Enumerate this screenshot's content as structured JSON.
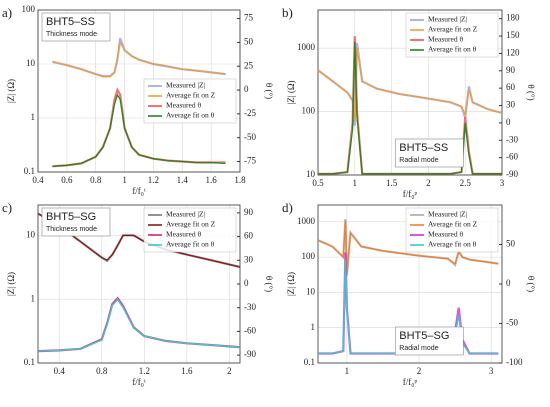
{
  "chart_data": [
    {
      "type": "line",
      "panel_label": "a)",
      "annotation": "BHT5–SS",
      "annotation_sub": "Thickness mode",
      "xlabel": "f/f₀ᵗ",
      "ylabel": "|Z| (Ω)",
      "y2label": "θ (°)",
      "ylog": true,
      "grid": true,
      "legend_loc": "center right",
      "x": [
        0.5,
        0.6,
        0.7,
        0.8,
        0.85,
        0.9,
        0.93,
        0.95,
        0.97,
        1.0,
        1.05,
        1.1,
        1.2,
        1.3,
        1.4,
        1.5,
        1.6,
        1.7
      ],
      "xlim": [
        0.4,
        1.8
      ],
      "xticks": [
        0.4,
        0.6,
        0.8,
        1,
        1.2,
        1.4,
        1.6,
        1.8
      ],
      "ylim": [
        0.1,
        100
      ],
      "yticks": [
        0.1,
        1,
        10,
        100
      ],
      "y2lim": [
        -86,
        84
      ],
      "y2ticks": [
        75,
        50,
        25,
        0,
        -25,
        -50,
        -75
      ],
      "series": [
        {
          "name": "Measured |Z|",
          "color": "#9a9ef0",
          "values": [
            11,
            9.5,
            8,
            6.5,
            6,
            6,
            7,
            12,
            30,
            18,
            14,
            12,
            10,
            9,
            8,
            7.5,
            7,
            6.5
          ]
        },
        {
          "name": "Average fit on Z",
          "color": "#f0a030",
          "values": [
            11,
            9.5,
            8,
            6.5,
            5.8,
            5.8,
            7,
            13,
            25,
            18,
            14,
            12,
            10,
            9,
            8,
            7.5,
            7,
            6.5
          ]
        },
        {
          "name": "Measured θ",
          "color": "#f05050",
          "axis": "y2",
          "values": [
            -80,
            -79,
            -77,
            -70,
            -60,
            -40,
            -10,
            0,
            -5,
            -40,
            -60,
            -68,
            -72,
            -74,
            -75,
            -76,
            -76,
            -76
          ]
        },
        {
          "name": "Average fit on θ",
          "color": "#228822",
          "axis": "y2",
          "values": [
            -80,
            -79,
            -77,
            -70,
            -60,
            -40,
            -15,
            -5,
            -10,
            -40,
            -60,
            -68,
            -72,
            -74,
            -75,
            -76,
            -76,
            -77
          ]
        }
      ]
    },
    {
      "type": "line",
      "panel_label": "b)",
      "annotation": "BHT5–SS",
      "annotation_sub": "Radial mode",
      "xlabel": "f/f₀ᵖ",
      "ylabel": "|Z| (Ω)",
      "y2label": "θ (°)",
      "ylog": true,
      "grid": true,
      "legend_loc": "upper right",
      "x": [
        0.5,
        0.7,
        0.9,
        0.97,
        1.0,
        1.03,
        1.1,
        1.3,
        1.6,
        2.0,
        2.3,
        2.45,
        2.5,
        2.55,
        2.6,
        2.8,
        3.0
      ],
      "xlim": [
        0.5,
        3
      ],
      "xticks": [
        0.5,
        1,
        1.5,
        2,
        2.5,
        3
      ],
      "ylim": [
        10,
        4000
      ],
      "yticks": [
        10,
        100,
        1000
      ],
      "y2lim": [
        -90,
        195
      ],
      "y2ticks": [
        180,
        150,
        120,
        90,
        60,
        30,
        0,
        -30,
        -60,
        -90
      ],
      "series": [
        {
          "name": "Measured |Z|",
          "color": "#9a9ef0",
          "values": [
            450,
            300,
            200,
            150,
            60,
            1200,
            300,
            230,
            190,
            160,
            140,
            120,
            80,
            250,
            140,
            110,
            95
          ]
        },
        {
          "name": "Average fit on Z",
          "color": "#f0a030",
          "values": [
            450,
            300,
            200,
            150,
            70,
            1000,
            300,
            230,
            190,
            160,
            140,
            120,
            90,
            220,
            140,
            110,
            95
          ]
        },
        {
          "name": "Measured θ",
          "color": "#f05050",
          "axis": "y2",
          "values": [
            -88,
            -88,
            -85,
            0,
            150,
            20,
            -88,
            -88,
            -88,
            -88,
            -88,
            -85,
            10,
            -50,
            -88,
            -88,
            -88
          ]
        },
        {
          "name": "Average fit on θ",
          "color": "#228822",
          "axis": "y2",
          "values": [
            -88,
            -88,
            -85,
            -10,
            140,
            10,
            -88,
            -88,
            -88,
            -88,
            -88,
            -85,
            0,
            -55,
            -88,
            -88,
            -88
          ]
        }
      ]
    },
    {
      "type": "line",
      "panel_label": "c)",
      "annotation": "BHT5–SG",
      "annotation_sub": "Thickness mode",
      "xlabel": "f/f₀ᵗ",
      "ylabel": "|Z| (Ω)",
      "y2label": "θ (°)",
      "ylog": true,
      "grid": true,
      "legend_loc": "upper right",
      "x": [
        0.2,
        0.4,
        0.6,
        0.8,
        0.85,
        0.9,
        0.95,
        1.0,
        1.1,
        1.2,
        1.4,
        1.6,
        1.8,
        2.0,
        2.1
      ],
      "xlim": [
        0.2,
        2.1
      ],
      "xticks": [
        0.4,
        0.8,
        1.2,
        1.6,
        2
      ],
      "ylim": [
        0.1,
        30
      ],
      "yticks": [
        0.1,
        1,
        10
      ],
      "y2lim": [
        -100,
        100
      ],
      "y2ticks": [
        90,
        60,
        30,
        0,
        -30,
        -60,
        -90
      ],
      "series": [
        {
          "name": "Measured |Z|",
          "color": "#777777",
          "values": [
            22,
            14,
            8,
            4.5,
            4,
            5,
            7,
            10,
            10,
            8,
            6,
            5,
            4.2,
            3.5,
            3.2
          ]
        },
        {
          "name": "Average fit on Z",
          "color": "#8b1a1a",
          "values": [
            22,
            14,
            8,
            4.5,
            4.1,
            5,
            7,
            10,
            10,
            8,
            6,
            5,
            4.2,
            3.5,
            3.2
          ]
        },
        {
          "name": "Measured θ",
          "color": "#cc2288",
          "axis": "y2",
          "values": [
            -85,
            -84,
            -82,
            -70,
            -50,
            -25,
            -18,
            -28,
            -55,
            -66,
            -72,
            -75,
            -77,
            -79,
            -80
          ]
        },
        {
          "name": "Average fit on θ",
          "color": "#33cccc",
          "axis": "y2",
          "values": [
            -85,
            -84,
            -82,
            -71,
            -52,
            -27,
            -20,
            -30,
            -56,
            -66,
            -72,
            -75,
            -77,
            -79,
            -80
          ]
        }
      ]
    },
    {
      "type": "line",
      "panel_label": "d)",
      "annotation": "BHT5–SG",
      "annotation_sub": "Radial mode",
      "xlabel": "f/f₀ᵖ",
      "ylabel": "|Z| (Ω)",
      "y2label": "θ (°)",
      "ylog": true,
      "grid": true,
      "legend_loc": "upper right",
      "x": [
        0.6,
        0.8,
        0.95,
        0.98,
        1.0,
        1.05,
        1.2,
        1.5,
        2.0,
        2.4,
        2.5,
        2.55,
        2.6,
        2.7,
        3.0,
        3.1
      ],
      "xlim": [
        0.6,
        3.15
      ],
      "xticks": [
        1,
        2,
        3
      ],
      "ylim": [
        0.1,
        3000
      ],
      "yticks": [
        0.1,
        1,
        10,
        100,
        1000
      ],
      "y2lim": [
        -100,
        100
      ],
      "y2ticks": [
        50,
        0,
        -50,
        -100
      ],
      "series": [
        {
          "name": "Measured |Z|",
          "color": "#aaaaaa",
          "values": [
            300,
            200,
            100,
            1200,
            30,
            500,
            200,
            150,
            110,
            90,
            60,
            150,
            100,
            85,
            70,
            65
          ]
        },
        {
          "name": "Average fit on Z",
          "color": "#f08030",
          "values": [
            300,
            200,
            100,
            1100,
            35,
            480,
            200,
            150,
            110,
            90,
            65,
            140,
            100,
            85,
            70,
            65
          ]
        },
        {
          "name": "Measured θ",
          "color": "#cc33cc",
          "axis": "y2",
          "values": [
            -88,
            -88,
            -85,
            40,
            -30,
            -88,
            -88,
            -88,
            -88,
            -85,
            -60,
            -30,
            -70,
            -88,
            -88,
            -88
          ]
        },
        {
          "name": "Average fit on θ",
          "color": "#33cccc",
          "axis": "y2",
          "values": [
            -88,
            -88,
            -85,
            30,
            -35,
            -88,
            -88,
            -88,
            -88,
            -85,
            -65,
            -40,
            -75,
            -88,
            -88,
            -88
          ]
        }
      ]
    }
  ]
}
